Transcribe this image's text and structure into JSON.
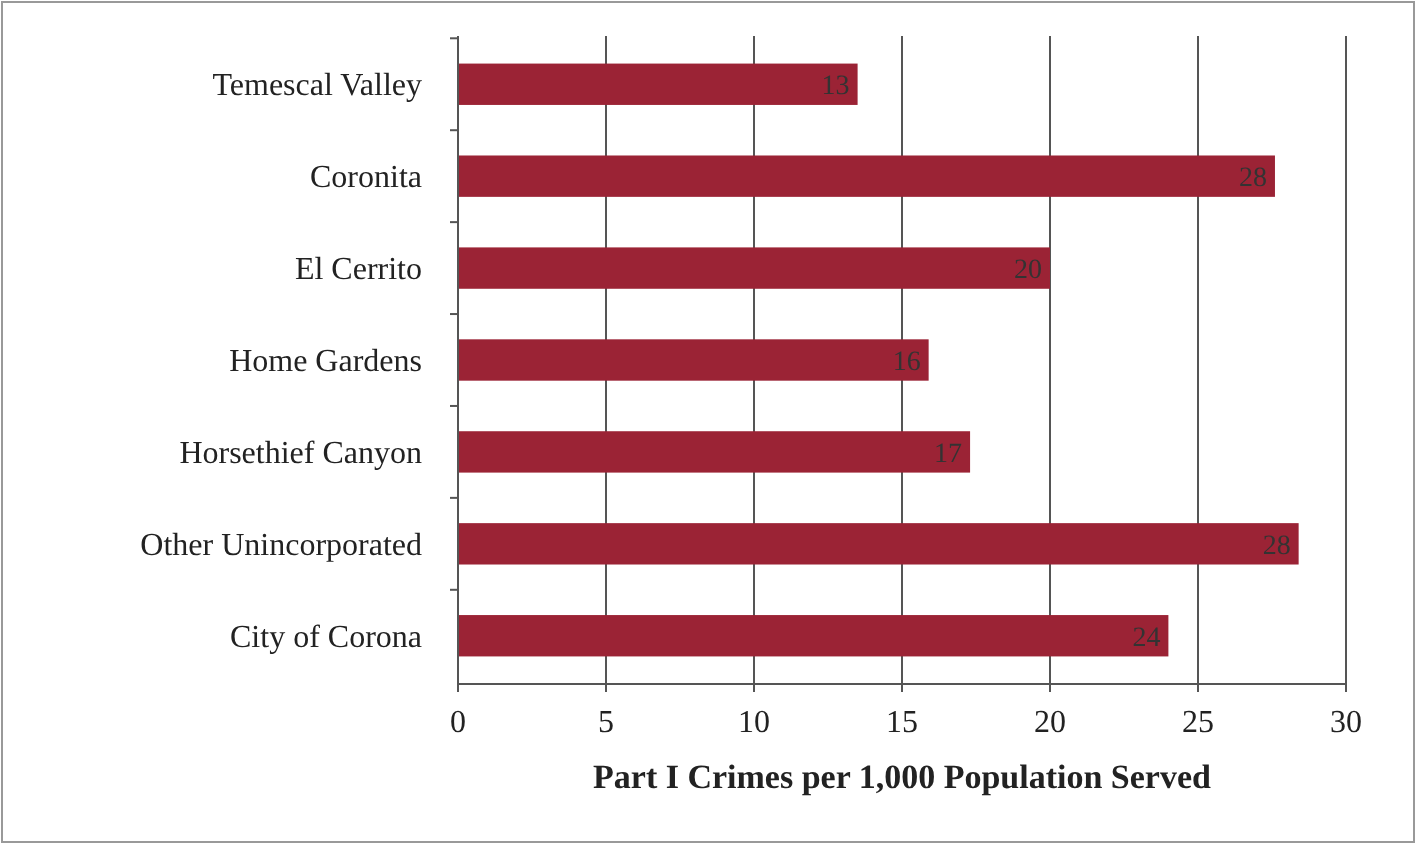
{
  "chart_data": {
    "type": "bar",
    "orientation": "horizontal",
    "xlabel": "Part I Crimes per 1,000 Population Served",
    "categories": [
      "Temescal Valley",
      "Coronita",
      "El Cerrito",
      "Home Gardens",
      "Horsethief Canyon",
      "Other Unincorporated",
      "City of Corona"
    ],
    "values": [
      13.5,
      27.6,
      20.0,
      15.9,
      17.3,
      28.4,
      24.0
    ],
    "value_labels": [
      "13",
      "28",
      "20",
      "16",
      "17",
      "28",
      "24"
    ],
    "color": "#9b2335",
    "xlim": [
      0,
      30
    ],
    "xticks": [
      0,
      5,
      10,
      15,
      20,
      25,
      30
    ],
    "grid": "x"
  }
}
